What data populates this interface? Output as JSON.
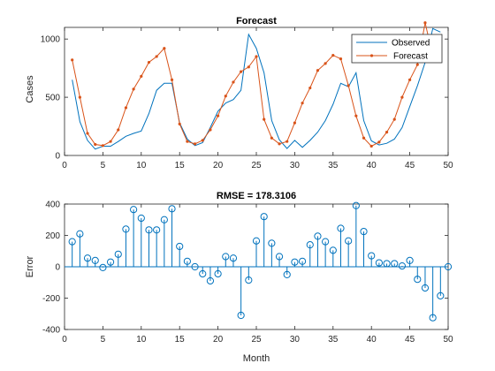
{
  "colors": {
    "observed": "#0072BD",
    "forecast": "#D95319",
    "axis": "#262626",
    "background": "#ffffff"
  },
  "chart_data": [
    {
      "type": "line",
      "title": "Forecast",
      "xlabel": "",
      "ylabel": "Cases",
      "xlim": [
        0,
        50
      ],
      "ylim": [
        0,
        1100
      ],
      "xticks": [
        "0",
        "5",
        "10",
        "15",
        "20",
        "25",
        "30",
        "35",
        "40",
        "45",
        "50"
      ],
      "yticks": [
        "0",
        "500",
        "1000"
      ],
      "legend": {
        "placement": "top-right",
        "entries": [
          "Observed",
          "Forecast"
        ]
      },
      "x": [
        1,
        2,
        3,
        4,
        5,
        6,
        7,
        8,
        9,
        10,
        11,
        12,
        13,
        14,
        15,
        16,
        17,
        18,
        19,
        20,
        21,
        22,
        23,
        24,
        25,
        26,
        27,
        28,
        29,
        30,
        31,
        32,
        33,
        34,
        35,
        36,
        37,
        38,
        39,
        40,
        41,
        42,
        43,
        44,
        45,
        46,
        47,
        48,
        49
      ],
      "series": [
        {
          "name": "Observed",
          "marker": "none",
          "values": [
            650,
            290,
            130,
            55,
            80,
            80,
            120,
            165,
            190,
            210,
            360,
            560,
            620,
            620,
            280,
            140,
            85,
            110,
            240,
            380,
            450,
            480,
            560,
            1040,
            920,
            710,
            300,
            135,
            60,
            130,
            70,
            130,
            200,
            300,
            440,
            620,
            590,
            710,
            300,
            125,
            90,
            105,
            140,
            240,
            420,
            600,
            800,
            1090,
            1060
          ]
        },
        {
          "name": "Forecast",
          "marker": "dot",
          "values": [
            820,
            500,
            190,
            95,
            85,
            120,
            220,
            410,
            570,
            680,
            800,
            850,
            920,
            650,
            270,
            120,
            100,
            130,
            220,
            340,
            510,
            630,
            720,
            760,
            850,
            310,
            150,
            100,
            120,
            280,
            450,
            580,
            730,
            790,
            860,
            830,
            600,
            340,
            150,
            80,
            115,
            200,
            310,
            500,
            650,
            780,
            1140,
            850,
            860
          ]
        }
      ]
    },
    {
      "type": "stem",
      "title": "RMSE = 178.3106",
      "xlabel": "Month",
      "ylabel": "Error",
      "xlim": [
        0,
        50
      ],
      "ylim": [
        -400,
        400
      ],
      "xticks": [
        "0",
        "5",
        "10",
        "15",
        "20",
        "25",
        "30",
        "35",
        "40",
        "45",
        "50"
      ],
      "yticks": [
        "-400",
        "-200",
        "0",
        "200",
        "400"
      ],
      "series": [
        {
          "name": "",
          "x": [
            1,
            2,
            3,
            4,
            5,
            6,
            7,
            8,
            9,
            10,
            11,
            12,
            13,
            14,
            15,
            16,
            17,
            18,
            19,
            20,
            21,
            22,
            23,
            24,
            25,
            26,
            27,
            28,
            29,
            30,
            31,
            32,
            33,
            34,
            35,
            36,
            37,
            38,
            39,
            40,
            41,
            42,
            43,
            44,
            45,
            46,
            47,
            48,
            49,
            50
          ],
          "values": [
            160,
            210,
            55,
            40,
            -5,
            30,
            80,
            240,
            365,
            310,
            235,
            235,
            300,
            370,
            130,
            35,
            0,
            -45,
            -90,
            -45,
            65,
            55,
            -310,
            -85,
            165,
            320,
            150,
            65,
            -50,
            30,
            35,
            140,
            195,
            160,
            105,
            245,
            165,
            390,
            225,
            70,
            25,
            20,
            20,
            5,
            40,
            -80,
            -135,
            -325,
            -185,
            0
          ]
        }
      ]
    }
  ]
}
